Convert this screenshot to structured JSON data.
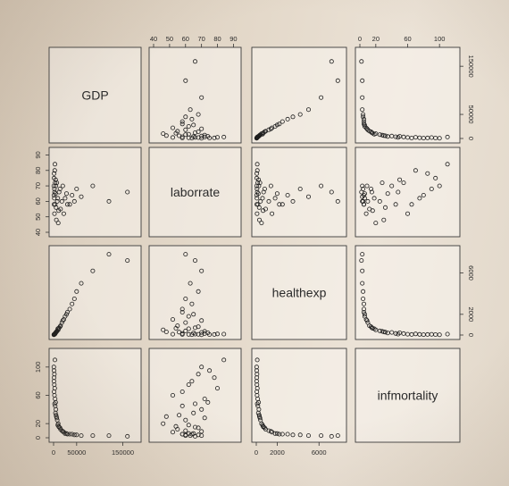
{
  "chart_data": {
    "type": "scatter",
    "kind": "scatterplot-matrix",
    "variables": [
      "GDP",
      "laborrate",
      "healthexp",
      "infmortality"
    ],
    "axes": {
      "GDP": {
        "ticks": [
          0,
          50000,
          150000
        ],
        "tick_labels": [
          "0",
          "50000",
          "150000"
        ],
        "range": [
          0,
          180000
        ]
      },
      "laborrate": {
        "ticks": [
          40,
          50,
          60,
          70,
          80,
          90
        ],
        "tick_labels": [
          "40",
          "50",
          "60",
          "70",
          "80",
          "90"
        ],
        "range": [
          40,
          92
        ]
      },
      "healthexp": {
        "ticks": [
          0,
          2000,
          6000
        ],
        "tick_labels": [
          "0",
          "2000",
          "6000"
        ],
        "range": [
          0,
          8200
        ]
      },
      "infmortality": {
        "ticks": [
          0,
          20,
          60,
          100
        ],
        "tick_labels": [
          "0",
          "20",
          "60",
          "100"
        ],
        "range": [
          0,
          120
        ]
      }
    },
    "tick_sides": {
      "top": [
        "laborrate",
        "infmortality"
      ],
      "bottom": [
        "GDP",
        "healthexp"
      ],
      "left": [
        "laborrate",
        "infmortality"
      ],
      "right": [
        "GDP",
        "healthexp"
      ]
    },
    "points": [
      [
        2000,
        52,
        80,
        60
      ],
      [
        3500,
        58,
        150,
        45
      ],
      [
        1500,
        62,
        60,
        75
      ],
      [
        8000,
        60,
        400,
        25
      ],
      [
        12000,
        66,
        700,
        15
      ],
      [
        5000,
        70,
        250,
        40
      ],
      [
        25000,
        62,
        1800,
        6
      ],
      [
        40000,
        64,
        3000,
        5
      ],
      [
        900,
        75,
        40,
        95
      ],
      [
        1200,
        78,
        55,
        85
      ],
      [
        30000,
        58,
        2200,
        5
      ],
      [
        15000,
        55,
        900,
        12
      ],
      [
        6000,
        48,
        300,
        30
      ],
      [
        4000,
        65,
        200,
        35
      ],
      [
        2500,
        80,
        100,
        70
      ],
      [
        18000,
        60,
        1200,
        10
      ],
      [
        50000,
        68,
        4200,
        4
      ],
      [
        60000,
        63,
        5000,
        3
      ],
      [
        85000,
        70,
        6200,
        3
      ],
      [
        120000,
        60,
        7800,
        3
      ],
      [
        160000,
        66,
        7200,
        2
      ],
      [
        35000,
        58,
        2500,
        5
      ],
      [
        22000,
        52,
        1500,
        8
      ],
      [
        10000,
        46,
        500,
        20
      ],
      [
        7000,
        72,
        350,
        28
      ],
      [
        3000,
        84,
        90,
        110
      ],
      [
        1800,
        68,
        70,
        90
      ],
      [
        9000,
        62,
        600,
        18
      ],
      [
        28000,
        65,
        2000,
        6
      ],
      [
        45000,
        60,
        3500,
        4
      ],
      [
        500,
        70,
        30,
        100
      ],
      [
        700,
        64,
        35,
        80
      ],
      [
        1000,
        58,
        50,
        65
      ],
      [
        14000,
        68,
        800,
        14
      ],
      [
        20000,
        70,
        1400,
        9
      ],
      [
        5500,
        56,
        280,
        32
      ],
      [
        4500,
        74,
        220,
        50
      ],
      [
        3200,
        72,
        140,
        55
      ],
      [
        2200,
        66,
        90,
        48
      ],
      [
        11000,
        54,
        650,
        16
      ]
    ]
  }
}
